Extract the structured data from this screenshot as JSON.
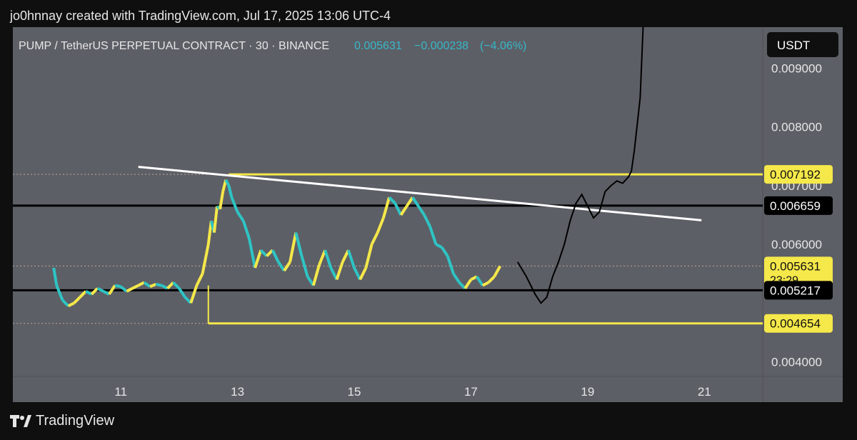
{
  "header": {
    "created_text": "jo0hnnay created with TradingView.com, Jul 17, 2025 13:06 UTC-4"
  },
  "footer": {
    "brand": "TradingView",
    "logo_icon": "tradingview-logo-icon"
  },
  "chart_data": {
    "type": "line",
    "symbol_text": "PUMP / TetherUS PERPETUAL CONTRACT · 30 · BINANCE",
    "quote": {
      "price": "0.005631",
      "change": "−0.000238",
      "change_pct": "(−4.06%)"
    },
    "currency_label": "USDT",
    "y_ticks": [
      "0.009000",
      "0.008000",
      "0.007000",
      "0.006000",
      "0.004000"
    ],
    "y_tick_values": [
      0.009,
      0.008,
      0.007,
      0.006,
      0.004
    ],
    "x_ticks": [
      "11",
      "13",
      "15",
      "17",
      "19",
      "21"
    ],
    "x_tick_values": [
      11,
      13,
      15,
      17,
      19,
      21
    ],
    "ylim": [
      0.00375,
      0.0097
    ],
    "xlim": [
      9.15,
      22.0
    ],
    "level_labels": [
      {
        "text": "0.007192",
        "value": 0.007192,
        "style": "yellow",
        "countdown": ""
      },
      {
        "text": "0.006659",
        "value": 0.006659,
        "style": "black",
        "countdown": ""
      },
      {
        "text": "0.005631",
        "value": 0.005631,
        "style": "yellow",
        "countdown": "23:29"
      },
      {
        "text": "0.005217",
        "value": 0.005217,
        "style": "black",
        "countdown": ""
      },
      {
        "text": "0.004654",
        "value": 0.004654,
        "style": "yellow",
        "countdown": ""
      }
    ],
    "horizontal_lines": [
      {
        "name": "resistance-line",
        "value": 0.007192,
        "x_start": 12.85,
        "color": "#f5e84a"
      },
      {
        "name": "level-line-upper",
        "value": 0.006659,
        "x_start": 9.15,
        "color": "#000000"
      },
      {
        "name": "level-line-lower",
        "value": 0.005217,
        "x_start": 9.15,
        "color": "#000000"
      },
      {
        "name": "support-line",
        "value": 0.004654,
        "x_start": 12.5,
        "color": "#f5e84a"
      }
    ],
    "dotted_levels": [
      0.007192,
      0.005631,
      0.004654
    ],
    "trendline": {
      "x": [
        11.3,
        20.95
      ],
      "y": [
        0.00732,
        0.00641
      ],
      "color": "#ffffff"
    },
    "projection": {
      "x": [
        17.8,
        17.95,
        18.1,
        18.2,
        18.3,
        18.4,
        18.5,
        18.6,
        18.7,
        18.8,
        18.9,
        19.0,
        19.1,
        19.2,
        19.3,
        19.4,
        19.5,
        19.6,
        19.7,
        19.75,
        19.8,
        19.9,
        19.95
      ],
      "y": [
        0.0057,
        0.00545,
        0.00515,
        0.005,
        0.0051,
        0.00545,
        0.0057,
        0.006,
        0.0064,
        0.0067,
        0.00685,
        0.00665,
        0.00645,
        0.00655,
        0.0069,
        0.007,
        0.00708,
        0.00704,
        0.00715,
        0.00725,
        0.0076,
        0.0085,
        0.0099
      ],
      "color": "#000000"
    },
    "price_series": {
      "name": "PUMP",
      "colors": {
        "up": "#f5e84a",
        "down": "#2ec4c4"
      },
      "x": [
        9.85,
        9.9,
        10.0,
        10.1,
        10.2,
        10.3,
        10.4,
        10.5,
        10.6,
        10.7,
        10.8,
        10.9,
        11.0,
        11.1,
        11.2,
        11.3,
        11.4,
        11.5,
        11.6,
        11.7,
        11.8,
        11.9,
        12.0,
        12.1,
        12.2,
        12.3,
        12.4,
        12.5,
        12.55,
        12.6,
        12.65,
        12.7,
        12.75,
        12.8,
        12.85,
        12.9,
        13.0,
        13.1,
        13.2,
        13.3,
        13.4,
        13.5,
        13.6,
        13.7,
        13.8,
        13.9,
        14.0,
        14.1,
        14.2,
        14.3,
        14.4,
        14.5,
        14.6,
        14.7,
        14.8,
        14.9,
        15.0,
        15.1,
        15.2,
        15.3,
        15.4,
        15.5,
        15.6,
        15.7,
        15.8,
        15.9,
        16.0,
        16.1,
        16.2,
        16.3,
        16.4,
        16.5,
        16.6,
        16.7,
        16.8,
        16.9,
        17.0,
        17.1,
        17.2,
        17.3,
        17.4,
        17.5
      ],
      "y": [
        0.0056,
        0.0053,
        0.00505,
        0.00495,
        0.005,
        0.0051,
        0.0052,
        0.00515,
        0.00525,
        0.0052,
        0.00515,
        0.0053,
        0.00528,
        0.0052,
        0.00525,
        0.0053,
        0.00535,
        0.00528,
        0.00532,
        0.0053,
        0.00525,
        0.00535,
        0.00525,
        0.0051,
        0.005,
        0.0053,
        0.0055,
        0.006,
        0.0064,
        0.0062,
        0.00665,
        0.0066,
        0.0069,
        0.0071,
        0.007,
        0.0068,
        0.00655,
        0.0064,
        0.0061,
        0.0056,
        0.0059,
        0.0058,
        0.0059,
        0.0057,
        0.00555,
        0.0057,
        0.0062,
        0.0058,
        0.00545,
        0.0053,
        0.00565,
        0.0059,
        0.0056,
        0.0054,
        0.0057,
        0.0059,
        0.0056,
        0.0054,
        0.0056,
        0.006,
        0.0062,
        0.00645,
        0.0068,
        0.0067,
        0.0065,
        0.00665,
        0.0068,
        0.00665,
        0.0065,
        0.0063,
        0.006,
        0.00595,
        0.0058,
        0.0055,
        0.00535,
        0.00525,
        0.0054,
        0.00545,
        0.0053,
        0.00535,
        0.00545,
        0.00563
      ]
    }
  }
}
